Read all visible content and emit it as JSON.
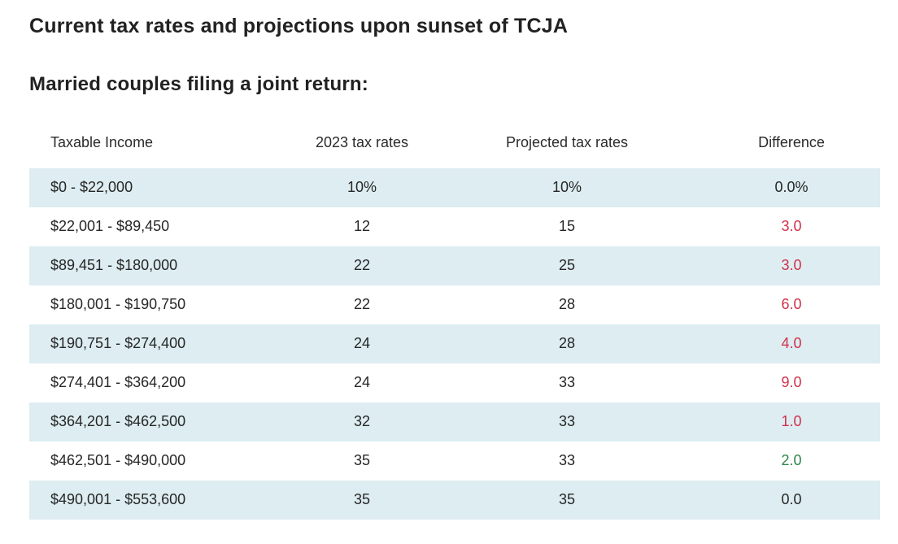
{
  "page": {
    "title": "Current tax rates and projections upon sunset of TCJA",
    "subtitle": "Married couples filing a joint return:"
  },
  "colors": {
    "stripe": "#ddedf2",
    "red": "#d0314a",
    "green": "#2e8548",
    "dark": "#262626"
  },
  "chart_data": {
    "type": "table",
    "title": "Current tax rates and projections upon sunset of TCJA — Married couples filing a joint return",
    "columns": [
      "Taxable Income",
      "2023 tax rates",
      "Projected tax rates",
      "Difference"
    ],
    "rows": [
      {
        "income": "$0 - $22,000",
        "rate_2023": "10%",
        "rate_projected": "10%",
        "difference": "0.0%",
        "difference_color": "dark"
      },
      {
        "income": "$22,001 - $89,450",
        "rate_2023": "12",
        "rate_projected": "15",
        "difference": "3.0",
        "difference_color": "red"
      },
      {
        "income": "$89,451 - $180,000",
        "rate_2023": "22",
        "rate_projected": "25",
        "difference": "3.0",
        "difference_color": "red"
      },
      {
        "income": "$180,001 - $190,750",
        "rate_2023": "22",
        "rate_projected": "28",
        "difference": "6.0",
        "difference_color": "red"
      },
      {
        "income": "$190,751 - $274,400",
        "rate_2023": "24",
        "rate_projected": "28",
        "difference": "4.0",
        "difference_color": "red"
      },
      {
        "income": "$274,401 - $364,200",
        "rate_2023": "24",
        "rate_projected": "33",
        "difference": "9.0",
        "difference_color": "red"
      },
      {
        "income": "$364,201 - $462,500",
        "rate_2023": "32",
        "rate_projected": "33",
        "difference": "1.0",
        "difference_color": "red"
      },
      {
        "income": "$462,501 - $490,000",
        "rate_2023": "35",
        "rate_projected": "33",
        "difference": "2.0",
        "difference_color": "green"
      },
      {
        "income": "$490,001 - $553,600",
        "rate_2023": "35",
        "rate_projected": "35",
        "difference": "0.0",
        "difference_color": "dark"
      }
    ]
  }
}
